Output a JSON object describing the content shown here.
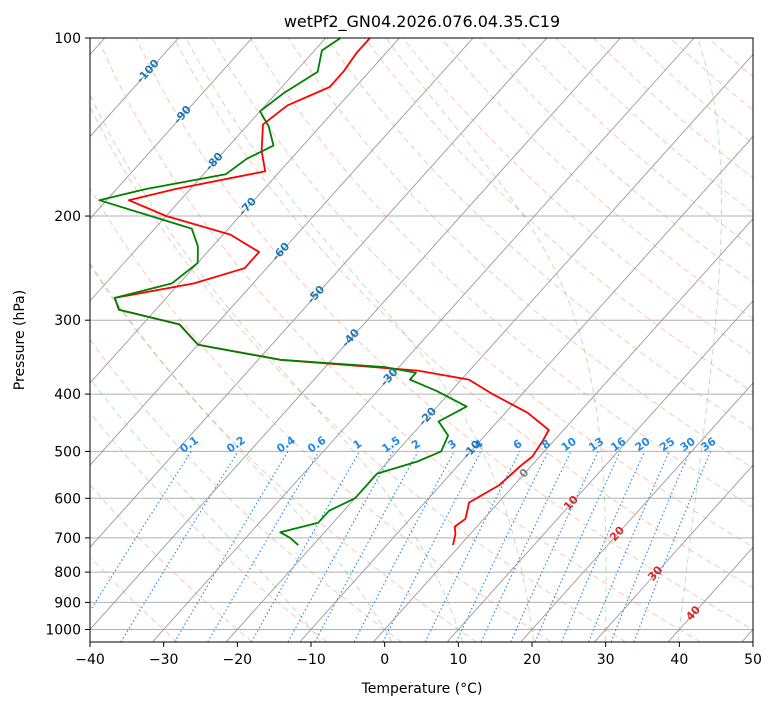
{
  "chart_data": {
    "type": "skew-t",
    "title": "wetPf2_GN04.2026.076.04.35.C19",
    "xlabel": "Temperature (°C)",
    "ylabel": "Pressure (hPa)",
    "xlim": [
      -40,
      50
    ],
    "ylim_hpa": [
      1050,
      100
    ],
    "x_ticks": [
      -40,
      -30,
      -20,
      -10,
      0,
      10,
      20,
      30,
      40,
      50
    ],
    "x_tick_labels": [
      "−40",
      "−30",
      "−20",
      "−10",
      "0",
      "10",
      "20",
      "30",
      "40",
      "50"
    ],
    "y_ticks": [
      100,
      200,
      300,
      400,
      500,
      600,
      700,
      800,
      900,
      1000
    ],
    "y_tick_labels": [
      "100",
      "200",
      "300",
      "400",
      "500",
      "600",
      "700",
      "800",
      "900",
      "1000"
    ],
    "grid": true,
    "skew_dT_per_decade_hpa": 72,
    "isotherms_degC": [
      -200,
      -190,
      -180,
      -170,
      -160,
      -150,
      -140,
      -130,
      -120,
      -110,
      -100,
      -90,
      -80,
      -70,
      -60,
      -50,
      -40,
      -30,
      -20,
      -10,
      0,
      10,
      20,
      30,
      40,
      50
    ],
    "dry_adiabats_degC_at_1000": [
      -30,
      -20,
      -10,
      0,
      10,
      20,
      30,
      40,
      50,
      60,
      70,
      80,
      90,
      100,
      110,
      120,
      130,
      140,
      150,
      160,
      170,
      180,
      190,
      200
    ],
    "moist_adiabats_degC_at_1000": [
      -10,
      0,
      10,
      20,
      30,
      40
    ],
    "mixing_ratio_lines_gkg": [
      "0.1",
      "0.2",
      "0.4",
      "0.6",
      "1",
      "1.5",
      "2",
      "3",
      "4",
      "6",
      "8",
      "10",
      "13",
      "16",
      "20",
      "25",
      "30",
      "36"
    ],
    "mixing_ratio_label_pressure_hpa": 500,
    "isotherm_labels": [
      "-100",
      "-90",
      "-80",
      "-70",
      "-60",
      "-50",
      "-40",
      "-30",
      "-20",
      "-10"
    ],
    "isotherm_label_positions": [
      {
        "label": "-100",
        "p": 114
      },
      {
        "label": "-90",
        "p": 135
      },
      {
        "label": "-80",
        "p": 162
      },
      {
        "label": "-70",
        "p": 193
      },
      {
        "label": "-60",
        "p": 230
      },
      {
        "label": "-50",
        "p": 272
      },
      {
        "label": "-40",
        "p": 322
      },
      {
        "label": "-30",
        "p": 375
      },
      {
        "label": "-20",
        "p": 437
      },
      {
        "label": "-10",
        "p": 497
      }
    ],
    "freezing_label": {
      "label": "0",
      "p": 545
    },
    "theta_e_labels": [
      {
        "label": "10",
        "p": 612
      },
      {
        "label": "20",
        "p": 690
      },
      {
        "label": "30",
        "p": 805
      },
      {
        "label": "40",
        "p": 940
      }
    ],
    "series": [
      {
        "name": "Temperature",
        "color": "#ff0000",
        "points": [
          {
            "p": 100,
            "t": -74
          },
          {
            "p": 106,
            "t": -74
          },
          {
            "p": 114,
            "t": -73.5
          },
          {
            "p": 121,
            "t": -73.5
          },
          {
            "p": 130,
            "t": -77
          },
          {
            "p": 140,
            "t": -78
          },
          {
            "p": 155,
            "t": -75
          },
          {
            "p": 168,
            "t": -72
          },
          {
            "p": 180,
            "t": -82
          },
          {
            "p": 188,
            "t": -87
          },
          {
            "p": 200,
            "t": -80
          },
          {
            "p": 215,
            "t": -69
          },
          {
            "p": 230,
            "t": -63
          },
          {
            "p": 245,
            "t": -63
          },
          {
            "p": 260,
            "t": -68
          },
          {
            "p": 275,
            "t": -77
          },
          {
            "p": 288,
            "t": -75
          },
          {
            "p": 305,
            "t": -65
          },
          {
            "p": 330,
            "t": -60
          },
          {
            "p": 350,
            "t": -47
          },
          {
            "p": 365,
            "t": -27
          },
          {
            "p": 378,
            "t": -19
          },
          {
            "p": 400,
            "t": -14
          },
          {
            "p": 430,
            "t": -7
          },
          {
            "p": 460,
            "t": -2
          },
          {
            "p": 480,
            "t": -1.5
          },
          {
            "p": 510,
            "t": -1
          },
          {
            "p": 530,
            "t": -1.5
          },
          {
            "p": 570,
            "t": -2
          },
          {
            "p": 610,
            "t": -4
          },
          {
            "p": 650,
            "t": -2.5
          },
          {
            "p": 670,
            "t": -3
          },
          {
            "p": 690,
            "t": -2
          },
          {
            "p": 720,
            "t": -1
          }
        ]
      },
      {
        "name": "Dewpoint",
        "color": "#008000",
        "points": [
          {
            "p": 100,
            "t": -78
          },
          {
            "p": 105,
            "t": -79
          },
          {
            "p": 114,
            "t": -77
          },
          {
            "p": 124,
            "t": -79
          },
          {
            "p": 133,
            "t": -80
          },
          {
            "p": 141,
            "t": -77
          },
          {
            "p": 152,
            "t": -74
          },
          {
            "p": 160,
            "t": -76
          },
          {
            "p": 170,
            "t": -77
          },
          {
            "p": 180,
            "t": -86
          },
          {
            "p": 188,
            "t": -91
          },
          {
            "p": 196,
            "t": -85
          },
          {
            "p": 210,
            "t": -75
          },
          {
            "p": 225,
            "t": -72
          },
          {
            "p": 240,
            "t": -70
          },
          {
            "p": 260,
            "t": -71
          },
          {
            "p": 275,
            "t": -77
          },
          {
            "p": 288,
            "t": -75
          },
          {
            "p": 305,
            "t": -65
          },
          {
            "p": 330,
            "t": -60
          },
          {
            "p": 350,
            "t": -47
          },
          {
            "p": 360,
            "t": -32
          },
          {
            "p": 368,
            "t": -27
          },
          {
            "p": 378,
            "t": -27
          },
          {
            "p": 395,
            "t": -22
          },
          {
            "p": 420,
            "t": -16
          },
          {
            "p": 445,
            "t": -18
          },
          {
            "p": 470,
            "t": -15
          },
          {
            "p": 500,
            "t": -14
          },
          {
            "p": 520,
            "t": -16
          },
          {
            "p": 545,
            "t": -20
          },
          {
            "p": 570,
            "t": -20
          },
          {
            "p": 600,
            "t": -20
          },
          {
            "p": 630,
            "t": -22
          },
          {
            "p": 660,
            "t": -22
          },
          {
            "p": 685,
            "t": -26
          },
          {
            "p": 700,
            "t": -24
          },
          {
            "p": 720,
            "t": -22
          }
        ]
      }
    ]
  }
}
